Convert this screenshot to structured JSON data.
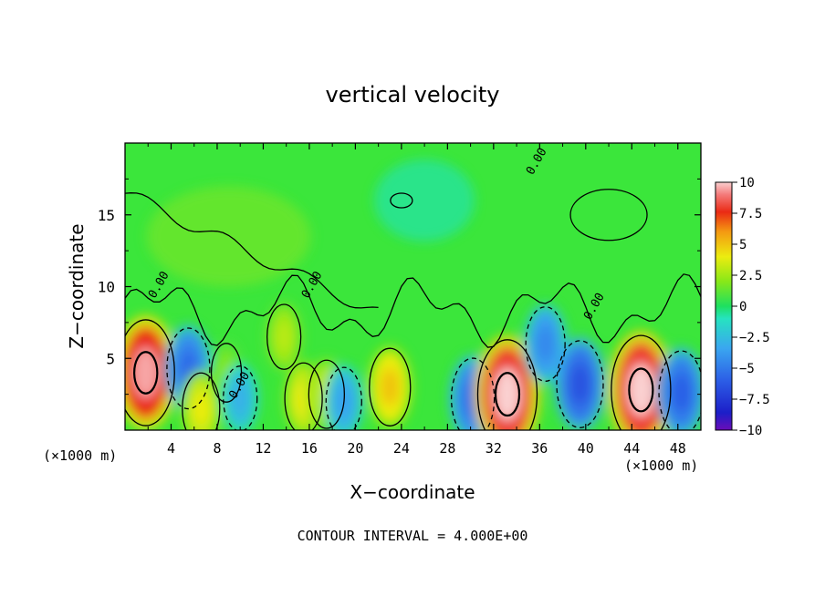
{
  "chart_data": {
    "type": "heatmap",
    "title": "vertical velocity",
    "xlabel": "X−coordinate",
    "ylabel": "Z−coordinate",
    "x_unit_label": "(×1000 m)",
    "y_unit_label": "(×1000 m)",
    "footer": "CONTOUR INTERVAL = 4.000E+00",
    "xlim": [
      0,
      50
    ],
    "ylim": [
      0,
      20
    ],
    "xticks": [
      4,
      8,
      12,
      16,
      20,
      24,
      28,
      32,
      36,
      40,
      44,
      48
    ],
    "xtick_labels": [
      "4",
      "8",
      "12",
      "16",
      "20",
      "24",
      "28",
      "32",
      "36",
      "40",
      "44",
      "48"
    ],
    "yticks": [
      5,
      10,
      15
    ],
    "ytick_labels": [
      "5",
      "10",
      "15"
    ],
    "colorbar": {
      "range": [
        -10,
        10
      ],
      "ticks": [
        10,
        7.5,
        5,
        2.5,
        0,
        -2.5,
        -5,
        -7.5,
        -10
      ],
      "tick_labels": [
        "10",
        "7.5",
        "5",
        "2.5",
        "0",
        "−2.5",
        "−5",
        "−7.5",
        "−10"
      ]
    },
    "contour_labels": [
      {
        "text": "0.00",
        "x": 3.2,
        "z": 10.0
      },
      {
        "text": "0.00",
        "x": 16.5,
        "z": 10.0
      },
      {
        "text": "0.00",
        "x": 10.2,
        "z": 3.0
      },
      {
        "text": "0.00",
        "x": 41.0,
        "z": 8.5
      },
      {
        "text": "0.00",
        "x": 36.0,
        "z": 18.6
      }
    ],
    "features": [
      {
        "x": 1.8,
        "z": 4.0,
        "w": 9.5,
        "label": "updraft"
      },
      {
        "x": 5.5,
        "z": 4.3,
        "w": -5.5,
        "label": "downdraft"
      },
      {
        "x": 6.6,
        "z": 1.5,
        "w": 4.0,
        "label": "updraft"
      },
      {
        "x": 8.8,
        "z": 4.0,
        "w": 2.0,
        "label": "updraft"
      },
      {
        "x": 10.0,
        "z": 2.2,
        "w": -3.0,
        "label": "downdraft"
      },
      {
        "x": 13.8,
        "z": 6.5,
        "w": 3.0,
        "label": "updraft"
      },
      {
        "x": 15.5,
        "z": 2.2,
        "w": 4.0,
        "label": "updraft"
      },
      {
        "x": 17.5,
        "z": 2.5,
        "w": 3.5,
        "label": "updraft"
      },
      {
        "x": 19.0,
        "z": 2.0,
        "w": -3.5,
        "label": "downdraft"
      },
      {
        "x": 23.0,
        "z": 3.0,
        "w": 5.0,
        "label": "updraft"
      },
      {
        "x": 30.2,
        "z": 2.2,
        "w": -5.5,
        "label": "downdraft"
      },
      {
        "x": 33.2,
        "z": 2.5,
        "w": 10.0,
        "label": "updraft"
      },
      {
        "x": 36.5,
        "z": 6.0,
        "w": -4.5,
        "label": "downdraft"
      },
      {
        "x": 39.5,
        "z": 3.2,
        "w": -6.5,
        "label": "downdraft"
      },
      {
        "x": 44.8,
        "z": 2.8,
        "w": 10.0,
        "label": "updraft"
      },
      {
        "x": 48.3,
        "z": 2.6,
        "w": -6.0,
        "label": "downdraft"
      }
    ]
  }
}
